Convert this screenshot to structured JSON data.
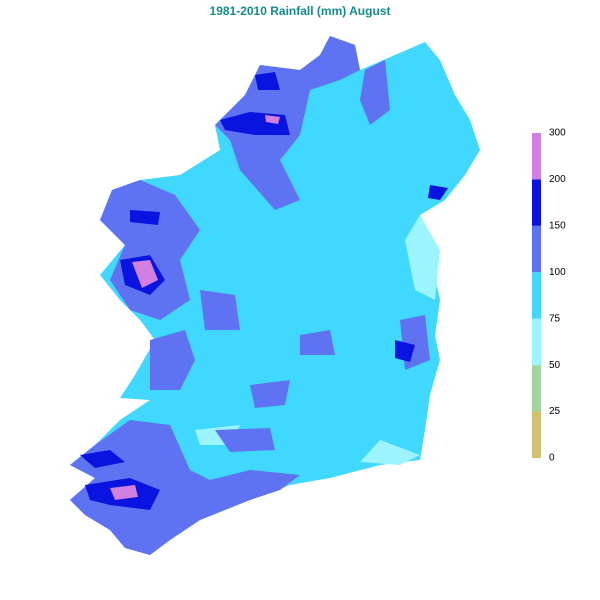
{
  "title": "1981-2010 Rainfall (mm) August",
  "legend": {
    "ticks": [
      0,
      25,
      50,
      75,
      100,
      150,
      200,
      300
    ],
    "colors": [
      "#d2c070",
      "#a3d4a0",
      "#9cf4ff",
      "#40d8ff",
      "#5e72f2",
      "#0a14e0",
      "#d080e0"
    ]
  }
}
